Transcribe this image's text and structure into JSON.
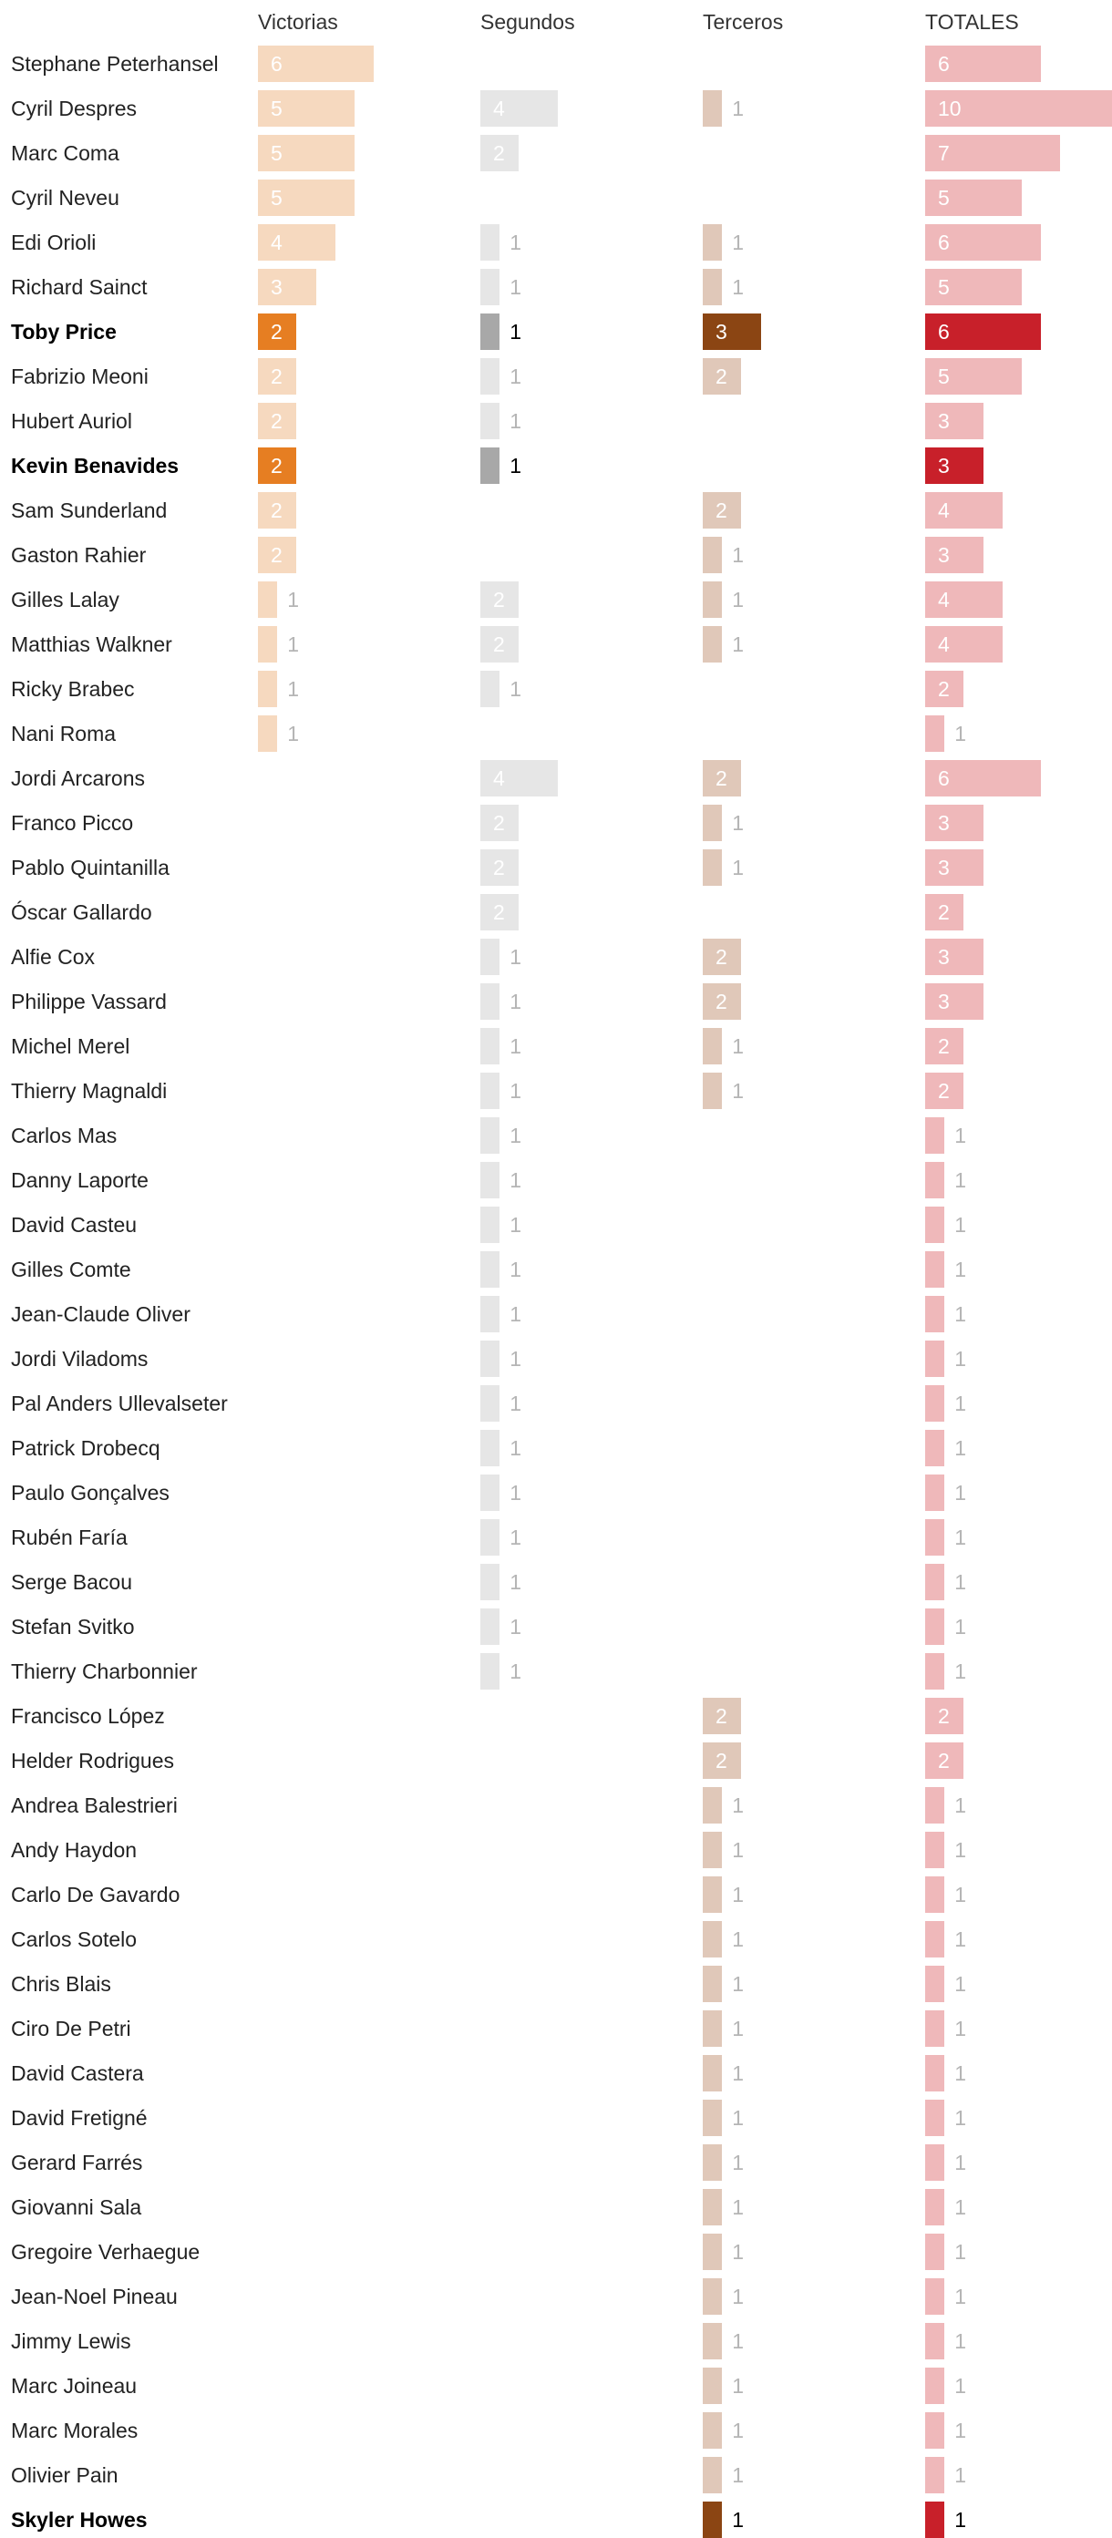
{
  "columns": [
    {
      "key": "victorias",
      "label": "Victorias",
      "color": "#f6d9bf",
      "hl_color": "#e67e22"
    },
    {
      "key": "segundos",
      "label": "Segundos",
      "color": "#e6e6e6",
      "hl_color": "#a8a8a8"
    },
    {
      "key": "terceros",
      "label": "Terceros",
      "color": "#e0c8b9",
      "hl_color": "#8b4513"
    },
    {
      "key": "totales",
      "label": "TOTALES",
      "color": "#efb8ba",
      "hl_color": "#c8202a"
    }
  ],
  "chart_data": {
    "type": "bar",
    "title": "",
    "categories": [
      "Stephane Peterhansel",
      "Cyril Despres",
      "Marc Coma",
      "Cyril Neveu",
      "Edi Orioli",
      "Richard Sainct",
      "Toby Price",
      "Fabrizio Meoni",
      "Hubert Auriol",
      "Kevin Benavides",
      "Sam Sunderland",
      "Gaston Rahier",
      "Gilles Lalay",
      "Matthias Walkner",
      "Ricky Brabec",
      "Nani Roma",
      "Jordi Arcarons",
      "Franco Picco",
      "Pablo Quintanilla",
      "Óscar Gallardo",
      "Alfie Cox",
      "Philippe Vassard",
      "Michel Merel",
      "Thierry Magnaldi",
      "Carlos Mas",
      "Danny Laporte",
      "David Casteu",
      "Gilles Comte",
      "Jean-Claude Oliver",
      "Jordi Viladoms",
      "Pal Anders Ullevalseter",
      "Patrick Drobecq",
      "Paulo Gonçalves",
      "Rubén Faría",
      "Serge Bacou",
      "Stefan Svitko",
      "Thierry Charbonnier",
      "Francisco López",
      "Helder Rodrigues",
      "Andrea Balestrieri",
      "Andy Haydon",
      "Carlo De Gavardo",
      "Carlos Sotelo",
      "Chris Blais",
      "Ciro De Petri",
      "David Castera",
      "David Fretigné",
      "Gerard Farrés",
      "Giovanni Sala",
      "Gregoire Verhaegue",
      "Jean-Noel Pineau",
      "Jimmy Lewis",
      "Marc Joineau",
      "Marc Morales",
      "Olivier Pain",
      "Skyler Howes"
    ],
    "highlighted": [
      "Toby Price",
      "Kevin Benavides",
      "Skyler Howes"
    ],
    "series": [
      {
        "name": "Victorias",
        "values": [
          6,
          5,
          5,
          5,
          4,
          3,
          2,
          2,
          2,
          2,
          2,
          2,
          1,
          1,
          1,
          1,
          0,
          0,
          0,
          0,
          0,
          0,
          0,
          0,
          0,
          0,
          0,
          0,
          0,
          0,
          0,
          0,
          0,
          0,
          0,
          0,
          0,
          0,
          0,
          0,
          0,
          0,
          0,
          0,
          0,
          0,
          0,
          0,
          0,
          0,
          0,
          0,
          0,
          0,
          0,
          0
        ]
      },
      {
        "name": "Segundos",
        "values": [
          0,
          4,
          2,
          0,
          1,
          1,
          1,
          1,
          1,
          1,
          0,
          0,
          2,
          2,
          1,
          0,
          4,
          2,
          2,
          2,
          1,
          1,
          1,
          1,
          1,
          1,
          1,
          1,
          1,
          1,
          1,
          1,
          1,
          1,
          1,
          1,
          1,
          0,
          0,
          0,
          0,
          0,
          0,
          0,
          0,
          0,
          0,
          0,
          0,
          0,
          0,
          0,
          0,
          0,
          0,
          0
        ]
      },
      {
        "name": "Terceros",
        "values": [
          0,
          1,
          0,
          0,
          1,
          1,
          3,
          2,
          0,
          0,
          2,
          1,
          1,
          1,
          0,
          0,
          2,
          1,
          1,
          0,
          2,
          2,
          1,
          1,
          0,
          0,
          0,
          0,
          0,
          0,
          0,
          0,
          0,
          0,
          0,
          0,
          0,
          2,
          2,
          1,
          1,
          1,
          1,
          1,
          1,
          1,
          1,
          1,
          1,
          1,
          1,
          1,
          1,
          1,
          1,
          1
        ]
      },
      {
        "name": "TOTALES",
        "values": [
          6,
          10,
          7,
          5,
          6,
          5,
          6,
          5,
          3,
          3,
          4,
          3,
          4,
          4,
          2,
          1,
          6,
          3,
          3,
          2,
          3,
          3,
          2,
          2,
          1,
          1,
          1,
          1,
          1,
          1,
          1,
          1,
          1,
          1,
          1,
          1,
          1,
          2,
          2,
          1,
          1,
          1,
          1,
          1,
          1,
          1,
          1,
          1,
          1,
          1,
          1,
          1,
          1,
          1,
          1,
          1
        ]
      }
    ]
  }
}
